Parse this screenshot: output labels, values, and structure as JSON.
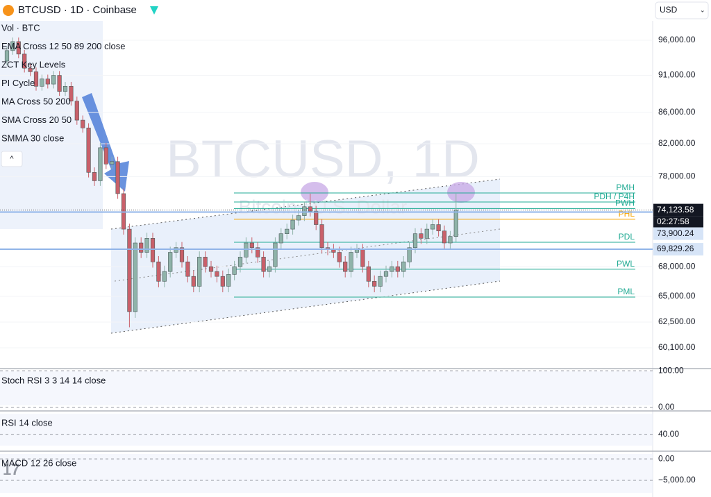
{
  "chart_data": {
    "type": "candlestick",
    "title": "BTCUSD · 1D · Coinbase",
    "currency": "USD",
    "watermark": "BTCUSD, 1D",
    "watermark_subtitle": "Bitcoin / U.S. Dollar",
    "indicators": [
      "Vol · BTC",
      "EMA Cross 12 50 89 200 close",
      "ZCT Key Levels",
      "PI Cycle",
      "MA Cross 50 200",
      "SMA Cross 20 50",
      "SMMA 30 close"
    ],
    "log_scale": true,
    "up_color": "#8fb3a9",
    "down_color": "#c9606a",
    "ylim": [
      58285,
      98880
    ],
    "yticks": [
      {
        "value": 96000,
        "label": "96,000.00"
      },
      {
        "value": 91000,
        "label": "91,000.00"
      },
      {
        "value": 86000,
        "label": "86,000.00"
      },
      {
        "value": 82000,
        "label": "82,000.00"
      },
      {
        "value": 78000,
        "label": "78,000.00"
      },
      {
        "value": 68000,
        "label": "68,000.00"
      },
      {
        "value": 65000,
        "label": "65,000.00"
      },
      {
        "value": 62500,
        "label": "62,500.00"
      },
      {
        "value": 60100,
        "label": "60,100.00"
      }
    ],
    "categories": [
      null,
      null,
      null,
      null,
      null,
      null,
      null,
      null,
      null,
      null,
      null,
      null,
      null,
      null,
      null,
      null,
      null,
      null,
      null,
      null,
      null,
      null,
      null,
      null,
      null,
      null,
      null,
      null,
      null,
      null,
      null,
      null,
      null,
      null,
      null,
      null,
      null,
      null,
      null,
      null,
      null,
      null,
      null,
      null,
      null,
      null,
      null,
      null,
      null,
      null,
      null,
      null,
      null,
      null,
      null,
      null,
      null,
      null,
      null,
      null,
      null,
      null,
      null,
      null,
      null,
      null,
      null,
      null,
      null,
      null,
      null,
      null,
      null,
      null,
      null,
      null,
      null,
      null
    ],
    "open": [
      93000,
      94500,
      95800,
      94000,
      92000,
      91500,
      89500,
      90500,
      89800,
      91000,
      88800,
      89500,
      87500,
      85000,
      84000,
      78500,
      77500,
      81500,
      79500,
      79800,
      76000,
      72000,
      63500,
      70500,
      69500,
      71000,
      68500,
      66500,
      67500,
      69500,
      70000,
      68500,
      67000,
      66000,
      69000,
      68000,
      67500,
      67000,
      66000,
      67200,
      68000,
      69000,
      70500,
      70000,
      69000,
      67500,
      68000,
      70500,
      71500,
      72000,
      73000,
      73500,
      74500,
      74000,
      72500,
      70000,
      69800,
      69500,
      68500,
      67500,
      69500,
      69800,
      68000,
      66500,
      66000,
      67000,
      67500,
      68000,
      67500,
      68500,
      70000,
      71500,
      71000,
      72000,
      72500,
      71800,
      70500,
      71200
    ],
    "high": [
      95100,
      96400,
      96400,
      94600,
      92600,
      92100,
      91100,
      91100,
      91600,
      91600,
      90100,
      90100,
      88100,
      85600,
      84600,
      79100,
      82100,
      82100,
      80400,
      80400,
      76600,
      72600,
      71100,
      71100,
      71600,
      71600,
      69100,
      68100,
      70100,
      70600,
      70600,
      69100,
      67600,
      69600,
      69600,
      68600,
      68100,
      67600,
      67800,
      68600,
      69600,
      71100,
      71100,
      70600,
      69600,
      68600,
      71100,
      72100,
      72600,
      73600,
      74100,
      75100,
      76000,
      74600,
      73100,
      70600,
      70400,
      70100,
      69100,
      70100,
      70400,
      70400,
      68600,
      67100,
      67600,
      68100,
      68600,
      68600,
      69100,
      70600,
      72100,
      72100,
      72600,
      73100,
      73100,
      72400,
      71800,
      76000
    ],
    "low": [
      92400,
      93900,
      93400,
      91400,
      90900,
      88900,
      88900,
      89200,
      89200,
      88200,
      88200,
      86900,
      84400,
      83400,
      77900,
      76900,
      76900,
      78900,
      78900,
      75400,
      71400,
      62000,
      62900,
      68900,
      68900,
      67900,
      65900,
      65900,
      66900,
      68900,
      67900,
      66400,
      65400,
      65400,
      67400,
      66900,
      66400,
      65400,
      65400,
      66600,
      67400,
      68400,
      69400,
      68400,
      66900,
      66900,
      67400,
      69900,
      70900,
      71400,
      72400,
      72900,
      73400,
      71900,
      69400,
      69200,
      68900,
      67900,
      66900,
      66900,
      68900,
      67400,
      65900,
      65400,
      65400,
      66400,
      66900,
      66900,
      66900,
      67900,
      69400,
      70400,
      70400,
      71400,
      71200,
      69900,
      69900,
      70600
    ],
    "close": [
      94500,
      95800,
      94000,
      92000,
      91500,
      89500,
      90500,
      89800,
      91000,
      88800,
      89500,
      87500,
      85000,
      84000,
      78500,
      77500,
      81500,
      79500,
      79800,
      76000,
      72000,
      63500,
      70500,
      69500,
      71000,
      68500,
      66500,
      67500,
      69500,
      70000,
      68500,
      67000,
      66000,
      69000,
      68000,
      67500,
      67000,
      66000,
      67200,
      68000,
      69000,
      70500,
      70000,
      69000,
      67500,
      68000,
      70500,
      71500,
      72000,
      73000,
      73500,
      74500,
      74000,
      72500,
      70000,
      69800,
      69500,
      68500,
      67500,
      69500,
      69800,
      68000,
      66500,
      66000,
      67000,
      67500,
      68000,
      67500,
      68500,
      70000,
      71500,
      71000,
      72000,
      72500,
      71800,
      70500,
      71200,
      74123.58
    ],
    "key_levels": [
      {
        "label": "PMH",
        "value": 76080,
        "color": "#22ab94"
      },
      {
        "label": "PDH / P4H",
        "value": 75040,
        "color": "#22ab94"
      },
      {
        "label": "PWH",
        "value": 74300,
        "color": "#22ab94"
      },
      {
        "label": "PHL",
        "value": 73090,
        "color": "#f7a600"
      },
      {
        "label": "PDL",
        "value": 70580,
        "color": "#22ab94"
      },
      {
        "label": "PWL",
        "value": 67730,
        "color": "#22ab94"
      },
      {
        "label": "PML",
        "value": 64920,
        "color": "#22ab94"
      }
    ],
    "price_tags": [
      {
        "value": 74123.58,
        "label": "74,123.58",
        "color": "#131722"
      },
      {
        "value": 73900.24,
        "label": "73,900.24",
        "color": "#d6e4f7"
      },
      {
        "value": 69829.26,
        "label": "69,829.26",
        "color": "#d6e4f7"
      }
    ],
    "countdown": "02:27:58",
    "panes": [
      {
        "title": "Stoch RSI 3 3 14 14 close",
        "ylim": [
          -6,
          106
        ],
        "yticks": [
          {
            "value": 100,
            "label": "100.00"
          },
          {
            "value": 0,
            "label": "0.00"
          }
        ]
      },
      {
        "title": "RSI 14 close",
        "ylim": [
          20,
          70
        ],
        "yticks": [
          {
            "value": 40,
            "label": "40.00"
          }
        ]
      },
      {
        "title": "MACD 12 26 close",
        "ylim": [
          -8900,
          1800
        ],
        "yticks": [
          {
            "value": 0,
            "label": "0.00"
          },
          {
            "value": -5000,
            "label": "−5,000.00"
          }
        ]
      }
    ]
  }
}
